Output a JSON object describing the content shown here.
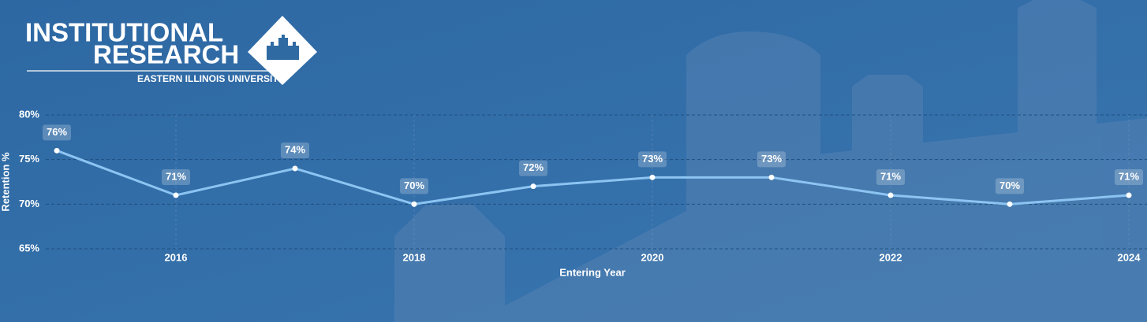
{
  "header": {
    "logo_line1": "INSTITUTIONAL",
    "logo_line2": "RESEARCH",
    "logo_sub": "EASTERN ILLINOIS UNIVERSITY"
  },
  "chart_data": {
    "type": "line",
    "x_label": "Entering Year",
    "y_label": "Retention %",
    "x": [
      2015,
      2016,
      2017,
      2018,
      2019,
      2020,
      2021,
      2022,
      2023,
      2024
    ],
    "series": [
      {
        "name": "Retention",
        "color": "#8cc4f2",
        "values": [
          76,
          71,
          74,
          70,
          72,
          73,
          73,
          71,
          70,
          71
        ],
        "value_labels": [
          "76%",
          "71%",
          "74%",
          "70%",
          "72%",
          "73%",
          "73%",
          "71%",
          "70%",
          "71%"
        ]
      }
    ],
    "xlim": [
      2015,
      2024
    ],
    "xticks": [
      2016,
      2018,
      2020,
      2022,
      2024
    ],
    "ylim": [
      65,
      80
    ],
    "yticks": [
      {
        "value": 65,
        "label": "65%"
      },
      {
        "value": 70,
        "label": "70%"
      },
      {
        "value": 75,
        "label": "75%"
      },
      {
        "value": 80,
        "label": "80%"
      }
    ],
    "grid": true
  }
}
